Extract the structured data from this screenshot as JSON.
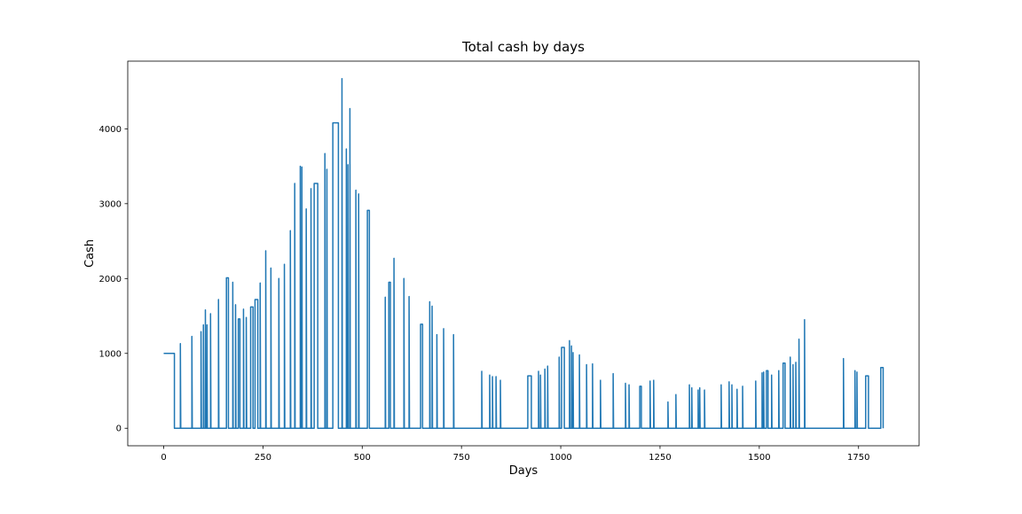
{
  "chart_data": {
    "type": "line",
    "title": "Total cash by days",
    "xlabel": "Days",
    "ylabel": "Cash",
    "color": "#1f77b4",
    "grid": false,
    "xlim": [
      -90.5,
      1902.5
    ],
    "ylim": [
      -234,
      4904
    ],
    "xticks": [
      0,
      250,
      500,
      750,
      1000,
      1250,
      1500,
      1750
    ],
    "yticks": [
      0,
      1000,
      2000,
      3000,
      4000
    ],
    "x": [
      0,
      27,
      27,
      42,
      42,
      43,
      71,
      71,
      72,
      94,
      94,
      95,
      100,
      100,
      101,
      105,
      105,
      106,
      109,
      109,
      110,
      118,
      118,
      119,
      138,
      138,
      139,
      158,
      158,
      163,
      163,
      174,
      174,
      175,
      181,
      181,
      182,
      188,
      188,
      192,
      192,
      201,
      201,
      202,
      208,
      208,
      209,
      219,
      219,
      225,
      225,
      230,
      230,
      237,
      237,
      243,
      243,
      244,
      257,
      257,
      258,
      270,
      270,
      271,
      290,
      290,
      291,
      304,
      304,
      305,
      319,
      319,
      320,
      330,
      330,
      331,
      344,
      344,
      345,
      348,
      348,
      349,
      359,
      359,
      360,
      371,
      371,
      372,
      379,
      379,
      388,
      388,
      406,
      406,
      407,
      411,
      411,
      412,
      426,
      426,
      440,
      440,
      449,
      449,
      450,
      460,
      460,
      461,
      464,
      464,
      465,
      469,
      469,
      470,
      484,
      484,
      485,
      491,
      491,
      492,
      513,
      513,
      518,
      518,
      558,
      558,
      559,
      567,
      567,
      571,
      571,
      580,
      580,
      581,
      605,
      605,
      606,
      618,
      618,
      619,
      647,
      647,
      652,
      652,
      670,
      670,
      671,
      676,
      676,
      677,
      688,
      688,
      689,
      705,
      705,
      706,
      730,
      730,
      731,
      801,
      801,
      802,
      821,
      821,
      822,
      828,
      828,
      829,
      837,
      837,
      838,
      848,
      848,
      849,
      917,
      917,
      926,
      926,
      944,
      944,
      945,
      949,
      949,
      950,
      960,
      960,
      961,
      967,
      967,
      968,
      996,
      996,
      997,
      1002,
      1002,
      1009,
      1009,
      1022,
      1022,
      1023,
      1027,
      1027,
      1028,
      1031,
      1031,
      1032,
      1047,
      1047,
      1048,
      1065,
      1065,
      1066,
      1080,
      1080,
      1081,
      1100,
      1100,
      1101,
      1132,
      1132,
      1133,
      1163,
      1163,
      1164,
      1172,
      1172,
      1173,
      1199,
      1199,
      1203,
      1203,
      1225,
      1225,
      1226,
      1234,
      1234,
      1235,
      1270,
      1270,
      1271,
      1290,
      1290,
      1291,
      1324,
      1324,
      1325,
      1330,
      1330,
      1331,
      1346,
      1346,
      1347,
      1350,
      1350,
      1351,
      1362,
      1362,
      1363,
      1404,
      1404,
      1405,
      1424,
      1424,
      1425,
      1431,
      1431,
      1432,
      1444,
      1444,
      1445,
      1458,
      1458,
      1459,
      1491,
      1491,
      1492,
      1507,
      1507,
      1508,
      1511,
      1511,
      1512,
      1518,
      1518,
      1522,
      1522,
      1531,
      1531,
      1532,
      1549,
      1549,
      1550,
      1560,
      1560,
      1565,
      1565,
      1578,
      1578,
      1579,
      1585,
      1585,
      1586,
      1592,
      1592,
      1593,
      1600,
      1600,
      1601,
      1614,
      1614,
      1615,
      1712,
      1712,
      1713,
      1741,
      1741,
      1742,
      1746,
      1746,
      1747,
      1768,
      1768,
      1775,
      1775,
      1806,
      1806,
      1812,
      1812
    ],
    "values": [
      1000,
      1000,
      0,
      0,
      1130,
      0,
      0,
      1226,
      0,
      0,
      1290,
      0,
      0,
      1380,
      0,
      0,
      1580,
      0,
      0,
      1380,
      0,
      0,
      1530,
      0,
      0,
      1720,
      0,
      0,
      2010,
      2010,
      0,
      0,
      1950,
      0,
      0,
      1650,
      0,
      0,
      1460,
      1460,
      0,
      0,
      1590,
      0,
      0,
      1480,
      0,
      0,
      1620,
      1620,
      0,
      0,
      1720,
      1720,
      0,
      0,
      1940,
      0,
      0,
      2370,
      0,
      0,
      2140,
      0,
      0,
      2000,
      0,
      0,
      2190,
      0,
      0,
      2640,
      0,
      0,
      3270,
      0,
      0,
      3500,
      0,
      0,
      3490,
      0,
      0,
      2930,
      0,
      0,
      3200,
      0,
      0,
      3270,
      3270,
      0,
      0,
      3670,
      0,
      0,
      3460,
      0,
      0,
      4080,
      4080,
      0,
      0,
      4670,
      0,
      0,
      3730,
      0,
      0,
      3520,
      0,
      0,
      4270,
      0,
      0,
      3180,
      0,
      0,
      3130,
      0,
      0,
      2910,
      2910,
      0,
      0,
      1750,
      0,
      0,
      1950,
      1950,
      0,
      0,
      2270,
      0,
      0,
      2000,
      0,
      0,
      1760,
      0,
      0,
      1390,
      1390,
      0,
      0,
      1690,
      0,
      0,
      1630,
      0,
      0,
      1250,
      0,
      0,
      1330,
      0,
      0,
      1250,
      0,
      0,
      760,
      0,
      0,
      710,
      0,
      0,
      690,
      0,
      0,
      690,
      0,
      0,
      640,
      0,
      0,
      700,
      700,
      0,
      0,
      760,
      0,
      0,
      710,
      0,
      0,
      790,
      0,
      0,
      830,
      0,
      0,
      950,
      0,
      0,
      1080,
      1080,
      0,
      0,
      1170,
      0,
      0,
      1100,
      0,
      0,
      1010,
      0,
      0,
      980,
      0,
      0,
      850,
      0,
      0,
      860,
      0,
      0,
      640,
      0,
      0,
      730,
      0,
      0,
      600,
      0,
      0,
      580,
      0,
      0,
      560,
      560,
      0,
      0,
      630,
      0,
      0,
      640,
      0,
      0,
      350,
      0,
      0,
      450,
      0,
      0,
      580,
      0,
      0,
      540,
      0,
      0,
      510,
      0,
      0,
      540,
      0,
      0,
      510,
      0,
      0,
      580,
      0,
      0,
      620,
      0,
      0,
      580,
      0,
      0,
      520,
      0,
      0,
      560,
      0,
      0,
      630,
      0,
      0,
      740,
      0,
      0,
      750,
      0,
      0,
      770,
      770,
      0,
      0,
      710,
      0,
      0,
      770,
      0,
      0,
      870,
      870,
      0,
      0,
      950,
      0,
      0,
      850,
      0,
      0,
      880,
      0,
      0,
      1190,
      0,
      0,
      1450,
      0,
      0,
      930,
      0,
      0,
      770,
      0,
      0,
      750,
      0,
      0,
      700,
      700,
      0,
      0,
      810,
      810,
      0
    ]
  }
}
